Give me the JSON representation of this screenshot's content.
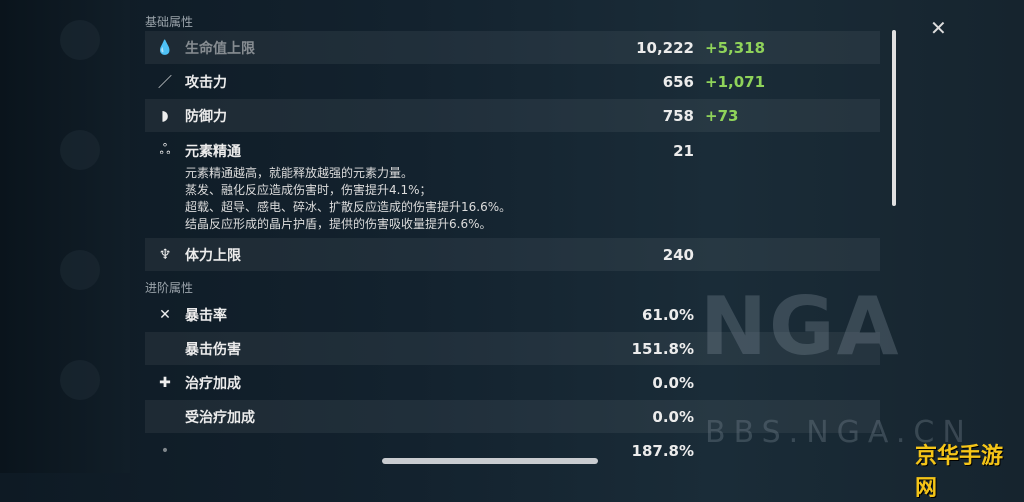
{
  "basic_section": "基础属性",
  "advanced_section": "进阶属性",
  "basic": [
    {
      "icon": "hp-drop-icon",
      "label": "生命值上限",
      "value": "10,222",
      "bonus": "+5,318"
    },
    {
      "icon": "sword-icon",
      "label": "攻击力",
      "value": "656",
      "bonus": "+1,071"
    },
    {
      "icon": "shield-icon",
      "label": "防御力",
      "value": "758",
      "bonus": "+73"
    },
    {
      "icon": "elemental-mastery-icon",
      "label": "元素精通",
      "value": "21",
      "bonus": ""
    },
    {
      "icon": "stamina-icon",
      "label": "体力上限",
      "value": "240",
      "bonus": ""
    }
  ],
  "em_desc": [
    "元素精通越高，就能释放越强的元素力量。",
    "蒸发、融化反应造成伤害时，伤害提升4.1%；",
    "超载、超导、感电、碎冰、扩散反应造成的伤害提升16.6%。",
    "结晶反应形成的晶片护盾，提供的伤害吸收量提升6.6%。"
  ],
  "advanced": [
    {
      "icon": "crit-icon",
      "label": "暴击率",
      "value": "61.0%"
    },
    {
      "icon": "",
      "label": "暴击伤害",
      "value": "151.8%"
    },
    {
      "icon": "heal-cross-icon",
      "label": "治疗加成",
      "value": "0.0%"
    },
    {
      "icon": "",
      "label": "受治疗加成",
      "value": "0.0%"
    },
    {
      "icon": "energy-icon",
      "label": "",
      "value": "187.8%"
    }
  ],
  "watermark": {
    "logo": "NGA",
    "site": "BBS.NGA.CN",
    "badge": "京华手游网"
  }
}
